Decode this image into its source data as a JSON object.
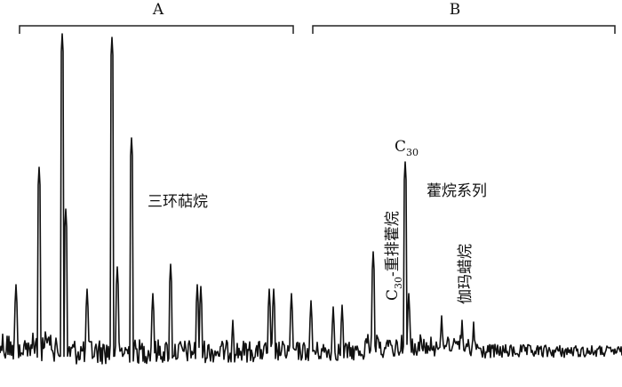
{
  "figure": {
    "groups": [
      {
        "label": "A"
      },
      {
        "label": "B"
      }
    ],
    "labels": {
      "tricyclic": "三环萜烷",
      "c30": {
        "base": "C",
        "sub": "30"
      },
      "rearranged": {
        "base": "C",
        "sub": "30",
        "rest": "-重排藿烷"
      },
      "hopanes": "藿烷系列",
      "gammacerane": "伽玛蜡烷"
    }
  }
}
